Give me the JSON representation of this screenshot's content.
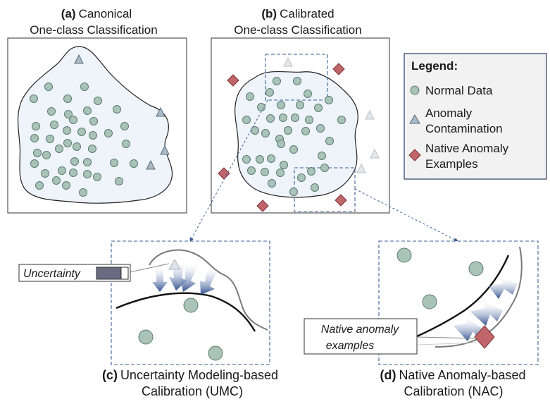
{
  "panel_a": {
    "tag": "(a)",
    "title_line1": "Canonical",
    "title_line2": "One-class Classification"
  },
  "panel_b": {
    "tag": "(b)",
    "title_line1": "Calibrated",
    "title_line2": "One-class Classification"
  },
  "panel_c": {
    "tag": "(c)",
    "title_line1": "Uncertainty Modeling-based",
    "title_line2": "Calibration (UMC)",
    "uncertainty_label": "Uncertainty"
  },
  "panel_d": {
    "tag": "(d)",
    "title_line1": "Native Anomaly-based",
    "title_line2": "Calibration (NAC)",
    "callout_line1": "Native anomaly",
    "callout_line2": "examples"
  },
  "legend": {
    "title": "Legend:",
    "items": [
      {
        "line1": "Normal Data",
        "line2": "",
        "icon": "circle-icon"
      },
      {
        "line1": "Anomaly",
        "line2": "Contamination",
        "icon": "triangle-icon"
      },
      {
        "line1": "Native Anomaly",
        "line2": "Examples",
        "icon": "diamond-icon"
      }
    ]
  },
  "colors": {
    "normal_fill": "#a9c3b8",
    "normal_stroke": "#5d7a70",
    "anomaly_fill": "#a9bac6",
    "anomaly_stroke": "#5b6b78",
    "native_fill": "#c0666a",
    "native_stroke": "#7d3438",
    "region_fill": "#eef4fa",
    "arrow": "#2f4f8f",
    "dashed": "#3b5f95",
    "uncertainty_bar": "#6c6a80"
  }
}
